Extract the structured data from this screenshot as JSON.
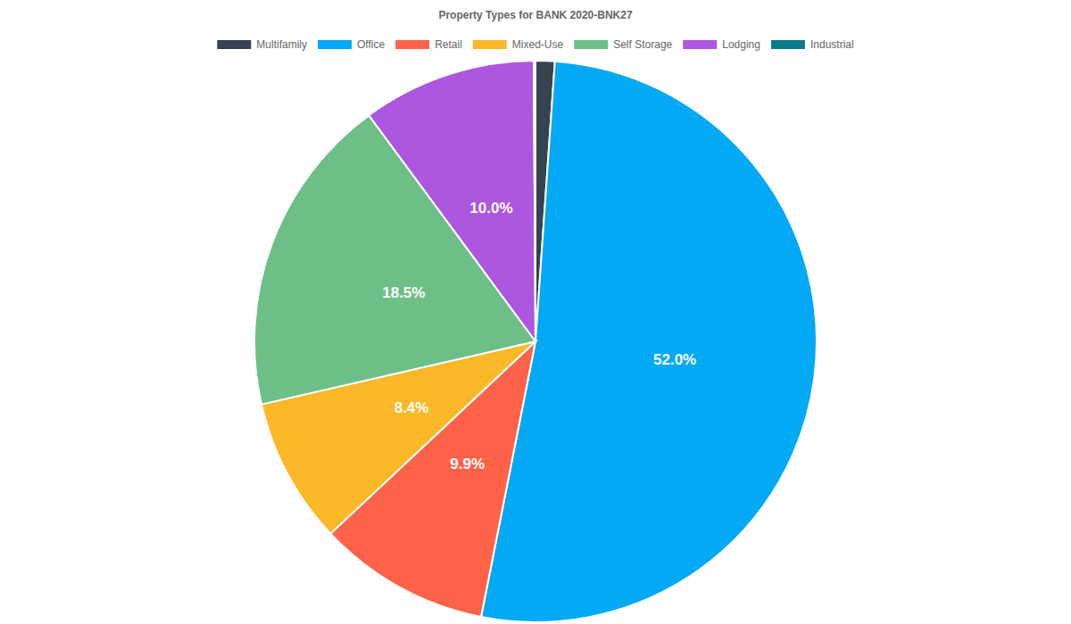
{
  "chart_data": {
    "type": "pie",
    "title": "Property Types for BANK 2020-BNK27",
    "categories": [
      "Multifamily",
      "Office",
      "Retail",
      "Mixed-Use",
      "Self Storage",
      "Lodging",
      "Industrial"
    ],
    "values": [
      1.1,
      52.0,
      9.9,
      8.4,
      18.5,
      10.0,
      0.1
    ],
    "value_labels": [
      null,
      "52.0%",
      "9.9%",
      "8.4%",
      "18.5%",
      "10.0%",
      null
    ],
    "colors": [
      "#36434f",
      "#03a9f4",
      "#fe6349",
      "#fbb829",
      "#6dbf88",
      "#ad56e0",
      "#0b7b8b"
    ],
    "data_labels": true,
    "legend": "top"
  }
}
